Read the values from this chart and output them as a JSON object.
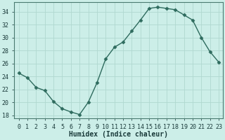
{
  "x": [
    0,
    1,
    2,
    3,
    4,
    5,
    6,
    7,
    8,
    9,
    10,
    11,
    12,
    13,
    14,
    15,
    16,
    17,
    18,
    19,
    20,
    21,
    22,
    23
  ],
  "y": [
    24.5,
    23.8,
    22.3,
    21.8,
    20.1,
    19.0,
    18.5,
    18.1,
    20.0,
    23.0,
    26.7,
    28.5,
    29.3,
    31.0,
    32.7,
    34.5,
    34.7,
    34.5,
    34.3,
    33.5,
    32.7,
    30.0,
    27.8,
    26.2
  ],
  "line_color": "#2e6b5e",
  "marker": "D",
  "marker_size": 2.5,
  "bg_color": "#cceee8",
  "grid_color": "#b0d8d0",
  "xlabel": "Humidex (Indice chaleur)",
  "xlabel_fontsize": 7,
  "tick_fontsize": 6,
  "ylim": [
    17.5,
    35.5
  ],
  "xlim": [
    -0.5,
    23.5
  ],
  "yticks": [
    18,
    20,
    22,
    24,
    26,
    28,
    30,
    32,
    34
  ],
  "xtick_labels": [
    "0",
    "1",
    "2",
    "3",
    "4",
    "5",
    "6",
    "7",
    "8",
    "9",
    "10",
    "11",
    "12",
    "13",
    "14",
    "15",
    "16",
    "17",
    "18",
    "19",
    "20",
    "21",
    "22",
    "23"
  ]
}
